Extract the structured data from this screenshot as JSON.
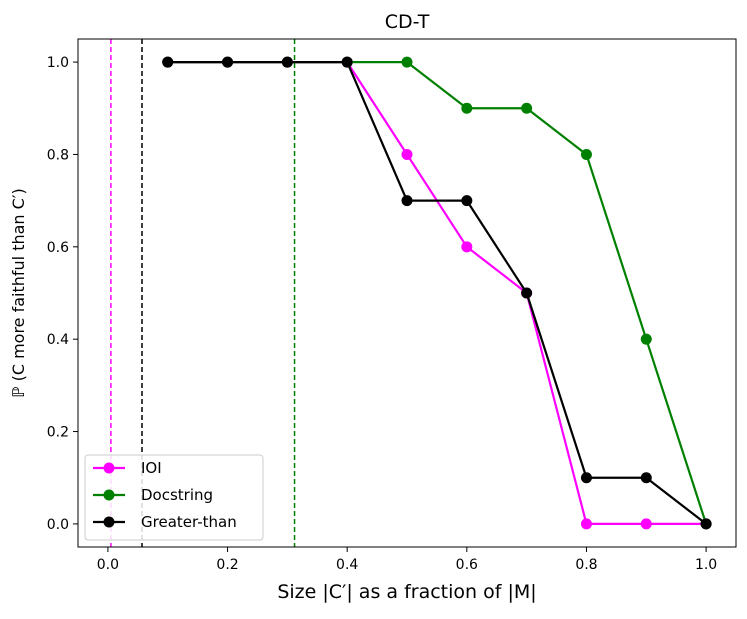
{
  "chart_data": {
    "type": "line",
    "title": "CD-T",
    "xlabel": "Size |C′| as a fraction of |M|",
    "ylabel": "ℙ (C more faithful than C′)",
    "xlim": [
      -0.05,
      1.05
    ],
    "ylim": [
      -0.05,
      1.05
    ],
    "xticks": [
      0.0,
      0.2,
      0.4,
      0.6,
      0.8,
      1.0
    ],
    "xtick_labels": [
      "0.0",
      "0.2",
      "0.4",
      "0.6",
      "0.8",
      "1.0"
    ],
    "yticks": [
      0.0,
      0.2,
      0.4,
      0.6,
      0.8,
      1.0
    ],
    "ytick_labels": [
      "0.0",
      "0.2",
      "0.4",
      "0.6",
      "0.8",
      "1.0"
    ],
    "grid": false,
    "legend_position": "lower-left",
    "series": [
      {
        "name": "IOI",
        "color": "#ff00ff",
        "x": [
          0.1,
          0.2,
          0.3,
          0.4,
          0.5,
          0.6,
          0.7,
          0.8,
          0.9,
          1.0
        ],
        "y": [
          1.0,
          1.0,
          1.0,
          1.0,
          0.8,
          0.6,
          0.5,
          0.0,
          0.0,
          0.0
        ]
      },
      {
        "name": "Docstring",
        "color": "#008000",
        "x": [
          0.1,
          0.2,
          0.3,
          0.4,
          0.5,
          0.6,
          0.7,
          0.8,
          0.9,
          1.0
        ],
        "y": [
          1.0,
          1.0,
          1.0,
          1.0,
          1.0,
          0.9,
          0.9,
          0.8,
          0.4,
          0.0
        ]
      },
      {
        "name": "Greater-than",
        "color": "#000000",
        "x": [
          0.1,
          0.2,
          0.3,
          0.4,
          0.5,
          0.6,
          0.7,
          0.8,
          0.9,
          1.0
        ],
        "y": [
          1.0,
          1.0,
          1.0,
          1.0,
          0.7,
          0.7,
          0.5,
          0.1,
          0.1,
          0.0
        ]
      }
    ],
    "vlines": [
      {
        "x": 0.005,
        "color": "#ff00ff",
        "style": "dashed"
      },
      {
        "x": 0.057,
        "color": "#000000",
        "style": "dashed"
      },
      {
        "x": 0.312,
        "color": "#008000",
        "style": "dashed"
      }
    ]
  }
}
